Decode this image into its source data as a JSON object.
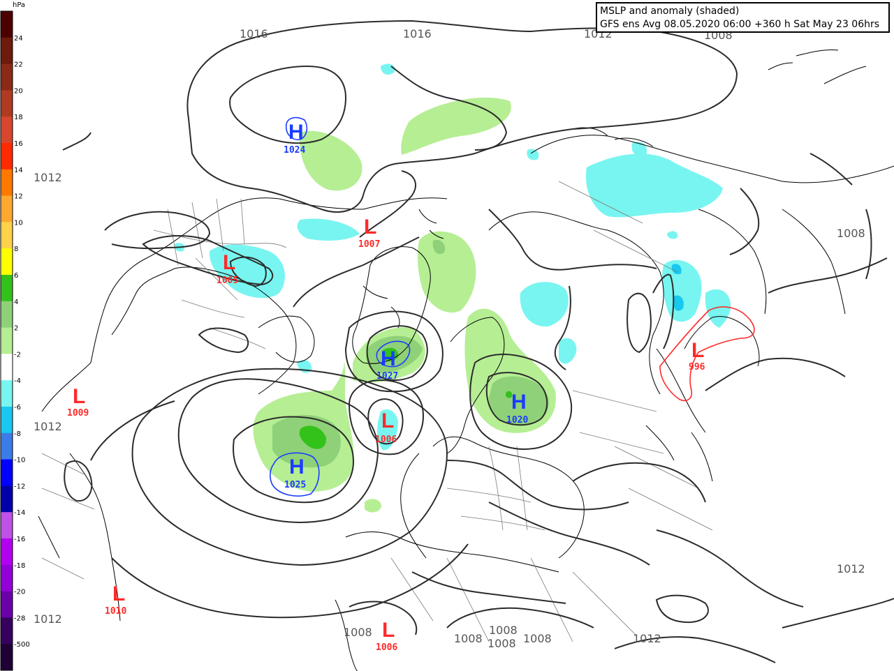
{
  "title": {
    "line1": "MSLP and anomaly (shaded)",
    "line2": "GFS ens Avg 08.05.2020 06:00 +360 h Sat May 23 06hrs"
  },
  "legend": {
    "unit": "hPa",
    "steps": [
      {
        "label": "24",
        "color": "#4b0000"
      },
      {
        "label": "22",
        "color": "#6e1a0c"
      },
      {
        "label": "20",
        "color": "#8b2a17"
      },
      {
        "label": "18",
        "color": "#b03a22"
      },
      {
        "label": "16",
        "color": "#d8462e"
      },
      {
        "label": "14",
        "color": "#ff2a00"
      },
      {
        "label": "12",
        "color": "#ff7800"
      },
      {
        "label": "10",
        "color": "#ffa830"
      },
      {
        "label": "8",
        "color": "#ffd24a"
      },
      {
        "label": "6",
        "color": "#ffff00"
      },
      {
        "label": "4",
        "color": "#33c21a"
      },
      {
        "label": "2",
        "color": "#8fd178"
      },
      {
        "label": "-2",
        "color": "#b6ee94"
      },
      {
        "label": "-4",
        "color": "#ffffff"
      },
      {
        "label": "-6",
        "color": "#78f5f0"
      },
      {
        "label": "-8",
        "color": "#18c8ee"
      },
      {
        "label": "-10",
        "color": "#3c7ce8"
      },
      {
        "label": "-12",
        "color": "#0000ff"
      },
      {
        "label": "-14",
        "color": "#0000a8"
      },
      {
        "label": "-16",
        "color": "#c050e8"
      },
      {
        "label": "-18",
        "color": "#b400f0"
      },
      {
        "label": "-20",
        "color": "#9300d8"
      },
      {
        "label": "-28",
        "color": "#6a00a8"
      },
      {
        "label": "-500",
        "color": "#36005e"
      },
      {
        "label": "",
        "color": "#1e0036"
      }
    ]
  },
  "isobar_labels": [
    "1016",
    "1016",
    "1012",
    "1012",
    "1008",
    "1012",
    "1008",
    "1012",
    "1012",
    "1008",
    "1008",
    "1008",
    "1008",
    "1008",
    "1012",
    "1012"
  ],
  "pressure_centers": [
    {
      "type": "H",
      "value": "1024"
    },
    {
      "type": "L",
      "value": "1007"
    },
    {
      "type": "L",
      "value": "1005"
    },
    {
      "type": "H",
      "value": "1027"
    },
    {
      "type": "L",
      "value": "1006"
    },
    {
      "type": "H",
      "value": "1020"
    },
    {
      "type": "H",
      "value": "1025"
    },
    {
      "type": "L",
      "value": "996"
    },
    {
      "type": "L",
      "value": "1009"
    },
    {
      "type": "L",
      "value": "1010"
    },
    {
      "type": "L",
      "value": "1006"
    }
  ],
  "colors": {
    "isobar": "#2b2b2b",
    "border": "#7a7a7a",
    "high": "#1a3cff",
    "low": "#ff2a2a",
    "anom_pos_light": "#b6ee94",
    "anom_pos_mid": "#8fd178",
    "anom_pos_strong": "#33c21a",
    "anom_neg_light": "#78f5f0",
    "anom_neg_mid": "#18c8ee"
  }
}
